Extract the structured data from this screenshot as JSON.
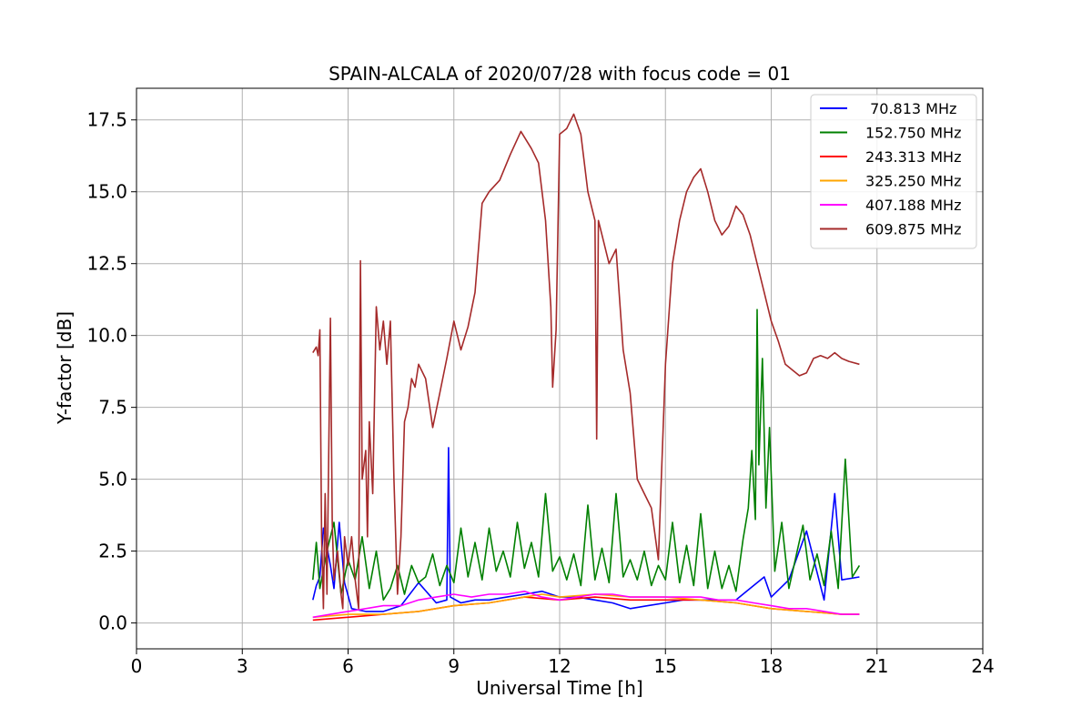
{
  "chart_data": {
    "type": "line",
    "title": "SPAIN-ALCALA of 2020/07/28 with focus code = 01",
    "xlabel": "Universal Time [h]",
    "ylabel": "Y-factor [dB]",
    "xlim": [
      0,
      24
    ],
    "ylim": [
      -0.9,
      18.6
    ],
    "xticks": [
      0,
      3,
      6,
      9,
      12,
      15,
      18,
      21,
      24
    ],
    "xtick_labels": [
      "0",
      "3",
      "6",
      "9",
      "12",
      "15",
      "18",
      "21",
      "24"
    ],
    "yticks": [
      0,
      2.5,
      5,
      7.5,
      10,
      12.5,
      15,
      17.5
    ],
    "ytick_labels": [
      "0.0",
      "2.5",
      "5.0",
      "7.5",
      "10.0",
      "12.5",
      "15.0",
      "17.5"
    ],
    "grid": true,
    "legend_position": "top-right",
    "series": [
      {
        "name": " 70.813 MHz",
        "color": "#0000ff",
        "x": [
          5.0,
          5.1,
          5.2,
          5.3,
          5.5,
          5.6,
          5.75,
          5.9,
          6.1,
          6.5,
          7.0,
          7.5,
          8.0,
          8.5,
          8.8,
          8.85,
          8.9,
          9.2,
          9.6,
          10.0,
          10.5,
          11.0,
          11.5,
          12.0,
          12.5,
          13.0,
          13.5,
          14.0,
          14.5,
          15.0,
          15.5,
          16.0,
          16.5,
          17.0,
          17.3,
          17.5,
          17.8,
          18.0,
          18.5,
          19.0,
          19.5,
          19.8,
          20.0,
          20.5
        ],
        "y": [
          0.8,
          1.3,
          1.6,
          3.3,
          2.0,
          1.2,
          3.5,
          1.4,
          0.5,
          0.4,
          0.4,
          0.6,
          1.4,
          0.7,
          0.8,
          6.1,
          0.9,
          0.7,
          0.8,
          0.8,
          0.9,
          1.0,
          1.1,
          0.9,
          0.9,
          0.8,
          0.7,
          0.5,
          0.6,
          0.7,
          0.8,
          0.8,
          0.8,
          0.8,
          1.1,
          1.3,
          1.6,
          0.9,
          1.5,
          3.2,
          0.8,
          4.5,
          1.5,
          1.6
        ]
      },
      {
        "name": "152.750 MHz",
        "color": "#008000",
        "x": [
          5.0,
          5.1,
          5.2,
          5.4,
          5.6,
          5.8,
          6.0,
          6.2,
          6.4,
          6.6,
          6.8,
          7.0,
          7.2,
          7.4,
          7.6,
          7.8,
          8.0,
          8.2,
          8.4,
          8.6,
          8.8,
          9.0,
          9.2,
          9.4,
          9.6,
          9.8,
          10.0,
          10.2,
          10.4,
          10.6,
          10.8,
          11.0,
          11.2,
          11.4,
          11.6,
          11.8,
          12.0,
          12.2,
          12.4,
          12.6,
          12.8,
          13.0,
          13.2,
          13.4,
          13.6,
          13.8,
          14.0,
          14.2,
          14.4,
          14.6,
          14.8,
          15.0,
          15.2,
          15.4,
          15.6,
          15.8,
          16.0,
          16.2,
          16.4,
          16.6,
          16.8,
          17.0,
          17.2,
          17.35,
          17.45,
          17.55,
          17.6,
          17.65,
          17.75,
          17.85,
          17.95,
          18.1,
          18.3,
          18.5,
          18.7,
          18.9,
          19.1,
          19.3,
          19.5,
          19.7,
          19.9,
          20.1,
          20.3,
          20.5
        ],
        "y": [
          1.5,
          2.8,
          1.2,
          2.5,
          3.5,
          1.0,
          2.2,
          1.5,
          3.0,
          1.2,
          2.5,
          0.8,
          1.2,
          2.0,
          1.0,
          2.0,
          1.4,
          1.6,
          2.4,
          1.3,
          2.0,
          1.4,
          3.3,
          1.6,
          2.8,
          1.5,
          3.3,
          1.8,
          2.5,
          1.6,
          3.5,
          1.9,
          2.8,
          1.6,
          4.5,
          1.8,
          2.3,
          1.5,
          2.4,
          1.3,
          4.1,
          1.5,
          2.6,
          1.4,
          4.5,
          1.6,
          2.2,
          1.5,
          2.5,
          1.3,
          2.0,
          1.5,
          3.5,
          1.4,
          2.7,
          1.3,
          3.8,
          1.2,
          2.5,
          1.2,
          2.0,
          1.1,
          2.9,
          4.0,
          6.0,
          3.6,
          10.9,
          5.5,
          9.2,
          4.0,
          6.8,
          1.8,
          3.5,
          1.2,
          2.3,
          3.4,
          1.5,
          2.4,
          1.3,
          3.2,
          1.2,
          5.7,
          1.6,
          2.0
        ]
      },
      {
        "name": "243.313 MHz",
        "color": "#ff0000",
        "x": [
          5.0,
          6.0,
          7.0,
          8.0,
          9.0,
          10.0,
          11.0,
          12.0,
          13.0,
          14.0,
          15.0,
          16.0,
          17.0,
          18.0,
          19.0,
          20.0,
          20.5
        ],
        "y": [
          0.1,
          0.2,
          0.3,
          0.4,
          0.6,
          0.7,
          0.9,
          0.8,
          0.9,
          0.8,
          0.8,
          0.8,
          0.7,
          0.5,
          0.4,
          0.3,
          0.3
        ]
      },
      {
        "name": "325.250 MHz",
        "color": "#ffa500",
        "x": [
          5.0,
          6.0,
          7.0,
          8.0,
          9.0,
          10.0,
          11.0,
          11.5,
          12.0,
          13.0,
          14.0,
          15.0,
          16.0,
          17.0,
          18.0,
          19.0,
          20.0,
          20.5
        ],
        "y": [
          0.2,
          0.3,
          0.3,
          0.4,
          0.6,
          0.7,
          0.9,
          1.0,
          0.9,
          1.0,
          0.9,
          0.9,
          0.8,
          0.7,
          0.5,
          0.4,
          0.3,
          0.3
        ]
      },
      {
        "name": "407.188 MHz",
        "color": "#ff00ff",
        "x": [
          5.0,
          5.5,
          6.0,
          6.5,
          7.0,
          7.5,
          8.0,
          8.5,
          9.0,
          9.5,
          10.0,
          10.5,
          11.0,
          11.5,
          12.0,
          12.5,
          13.0,
          13.5,
          14.0,
          14.5,
          15.0,
          15.5,
          16.0,
          16.5,
          17.0,
          17.5,
          18.0,
          18.5,
          19.0,
          19.5,
          20.0,
          20.5
        ],
        "y": [
          0.2,
          0.3,
          0.4,
          0.5,
          0.6,
          0.6,
          0.8,
          0.9,
          1.0,
          0.9,
          1.0,
          1.0,
          1.1,
          0.9,
          0.8,
          0.9,
          1.0,
          1.0,
          0.9,
          0.9,
          0.9,
          0.9,
          0.9,
          0.8,
          0.8,
          0.7,
          0.6,
          0.5,
          0.5,
          0.4,
          0.3,
          0.3
        ]
      },
      {
        "name": "609.875 MHz",
        "color": "#a52a2a",
        "x": [
          5.0,
          5.1,
          5.15,
          5.2,
          5.25,
          5.3,
          5.35,
          5.4,
          5.5,
          5.55,
          5.6,
          5.7,
          5.8,
          5.85,
          5.9,
          6.0,
          6.1,
          6.2,
          6.3,
          6.35,
          6.4,
          6.5,
          6.55,
          6.6,
          6.7,
          6.8,
          6.9,
          7.0,
          7.1,
          7.2,
          7.3,
          7.4,
          7.5,
          7.6,
          7.7,
          7.8,
          7.9,
          8.0,
          8.2,
          8.4,
          8.6,
          8.8,
          9.0,
          9.2,
          9.4,
          9.6,
          9.8,
          10.0,
          10.3,
          10.6,
          10.9,
          11.2,
          11.4,
          11.6,
          11.75,
          11.8,
          11.9,
          12.0,
          12.2,
          12.4,
          12.6,
          12.8,
          13.0,
          13.05,
          13.1,
          13.2,
          13.4,
          13.6,
          13.8,
          14.0,
          14.2,
          14.4,
          14.6,
          14.8,
          15.0,
          15.2,
          15.4,
          15.6,
          15.8,
          16.0,
          16.2,
          16.4,
          16.6,
          16.8,
          17.0,
          17.2,
          17.4,
          17.6,
          17.8,
          18.0,
          18.2,
          18.4,
          18.6,
          18.8,
          19.0,
          19.2,
          19.4,
          19.6,
          19.8,
          20.0,
          20.2,
          20.5
        ],
        "y": [
          9.4,
          9.6,
          9.3,
          10.2,
          3.0,
          0.5,
          4.5,
          1.0,
          10.6,
          3.5,
          1.5,
          2.5,
          1.0,
          0.5,
          3.0,
          2.0,
          3.0,
          1.5,
          0.5,
          12.6,
          5.0,
          6.0,
          3.0,
          7.0,
          4.5,
          11.0,
          9.5,
          10.5,
          9.0,
          10.5,
          5.0,
          1.0,
          3.0,
          7.0,
          7.5,
          8.5,
          8.2,
          9.0,
          8.5,
          6.8,
          8.0,
          9.2,
          10.5,
          9.5,
          10.3,
          11.5,
          14.6,
          15.0,
          15.4,
          16.3,
          17.1,
          16.5,
          16.0,
          14.0,
          11.0,
          8.2,
          10.2,
          17.0,
          17.2,
          17.7,
          17.0,
          15.0,
          14.0,
          6.4,
          14.0,
          13.5,
          12.5,
          13.0,
          9.5,
          8.0,
          5.0,
          4.5,
          4.0,
          2.2,
          9.0,
          12.5,
          14.0,
          15.0,
          15.5,
          15.8,
          15.0,
          14.0,
          13.5,
          13.8,
          14.5,
          14.2,
          13.5,
          12.5,
          11.5,
          10.5,
          9.8,
          9.0,
          8.8,
          8.6,
          8.7,
          9.2,
          9.3,
          9.2,
          9.4,
          9.2,
          9.1,
          9.0
        ]
      }
    ]
  }
}
